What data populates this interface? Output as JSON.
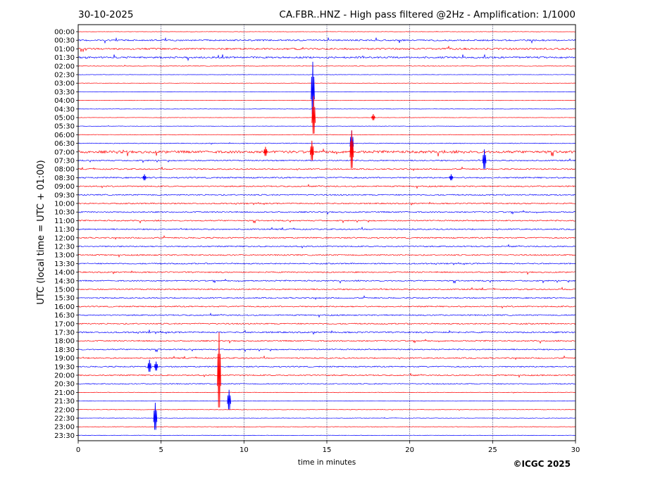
{
  "header": {
    "date": "30-10-2025",
    "station_title": "CA.FBR..HNZ - High pass filtered @2Hz - Amplification: 1/1000"
  },
  "footer": {
    "copyright": "©ICGC 2025"
  },
  "chart_data": {
    "type": "line",
    "subtype": "helicorder",
    "xlabel": "time in minutes",
    "ylabel": "UTC (local time = UTC + 01:00)",
    "xlim": [
      0,
      30
    ],
    "xticks": [
      0,
      5,
      10,
      15,
      20,
      25,
      30
    ],
    "vertical_grid": "dotted at 5-minute intervals",
    "row_labels": [
      "00:00",
      "00:30",
      "01:00",
      "01:30",
      "02:00",
      "02:30",
      "03:00",
      "03:30",
      "04:00",
      "04:30",
      "05:00",
      "05:30",
      "06:00",
      "06:30",
      "07:00",
      "07:30",
      "08:00",
      "08:30",
      "09:00",
      "09:30",
      "10:00",
      "10:30",
      "11:00",
      "11:30",
      "12:00",
      "12:30",
      "13:00",
      "13:30",
      "14:00",
      "14:30",
      "15:00",
      "15:30",
      "16:00",
      "16:30",
      "17:00",
      "17:30",
      "18:00",
      "18:30",
      "19:00",
      "19:30",
      "20:00",
      "20:30",
      "21:00",
      "21:30",
      "22:00",
      "22:30",
      "23:00",
      "23:30"
    ],
    "trace_colors": [
      "#ff0000",
      "#0000ff"
    ],
    "row_noise_level": [
      0.3,
      1.2,
      1.4,
      1.4,
      0.5,
      0.3,
      0.3,
      0.3,
      0.3,
      0.3,
      0.3,
      0.3,
      0.5,
      0.6,
      2.0,
      1.0,
      1.0,
      1.1,
      1.0,
      1.0,
      1.0,
      1.0,
      1.0,
      1.0,
      1.0,
      1.0,
      1.0,
      1.0,
      1.0,
      1.0,
      1.0,
      1.0,
      1.0,
      1.0,
      1.0,
      1.2,
      1.0,
      1.0,
      1.0,
      1.0,
      1.0,
      0.8,
      0.4,
      0.3,
      0.4,
      0.4,
      0.4,
      0.4
    ],
    "events": [
      {
        "row": 7,
        "minute": 14.15,
        "amplitude": 3.5
      },
      {
        "row": 10,
        "minute": 14.2,
        "amplitude": 2.5
      },
      {
        "row": 10,
        "minute": 17.8,
        "amplitude": 0.4
      },
      {
        "row": 13,
        "minute": 16.5,
        "amplitude": 1.5
      },
      {
        "row": 14,
        "minute": 14.1,
        "amplitude": 1.3
      },
      {
        "row": 14,
        "minute": 16.5,
        "amplitude": 2.5
      },
      {
        "row": 14,
        "minute": 11.3,
        "amplitude": 0.6
      },
      {
        "row": 15,
        "minute": 24.5,
        "amplitude": 1.3
      },
      {
        "row": 17,
        "minute": 4.0,
        "amplitude": 0.4
      },
      {
        "row": 17,
        "minute": 22.5,
        "amplitude": 0.4
      },
      {
        "row": 39,
        "minute": 4.3,
        "amplitude": 0.8
      },
      {
        "row": 39,
        "minute": 4.7,
        "amplitude": 0.6
      },
      {
        "row": 40,
        "minute": 8.5,
        "amplitude": 5.0
      },
      {
        "row": 43,
        "minute": 9.1,
        "amplitude": 1.3
      },
      {
        "row": 45,
        "minute": 4.65,
        "amplitude": 1.8
      }
    ]
  }
}
